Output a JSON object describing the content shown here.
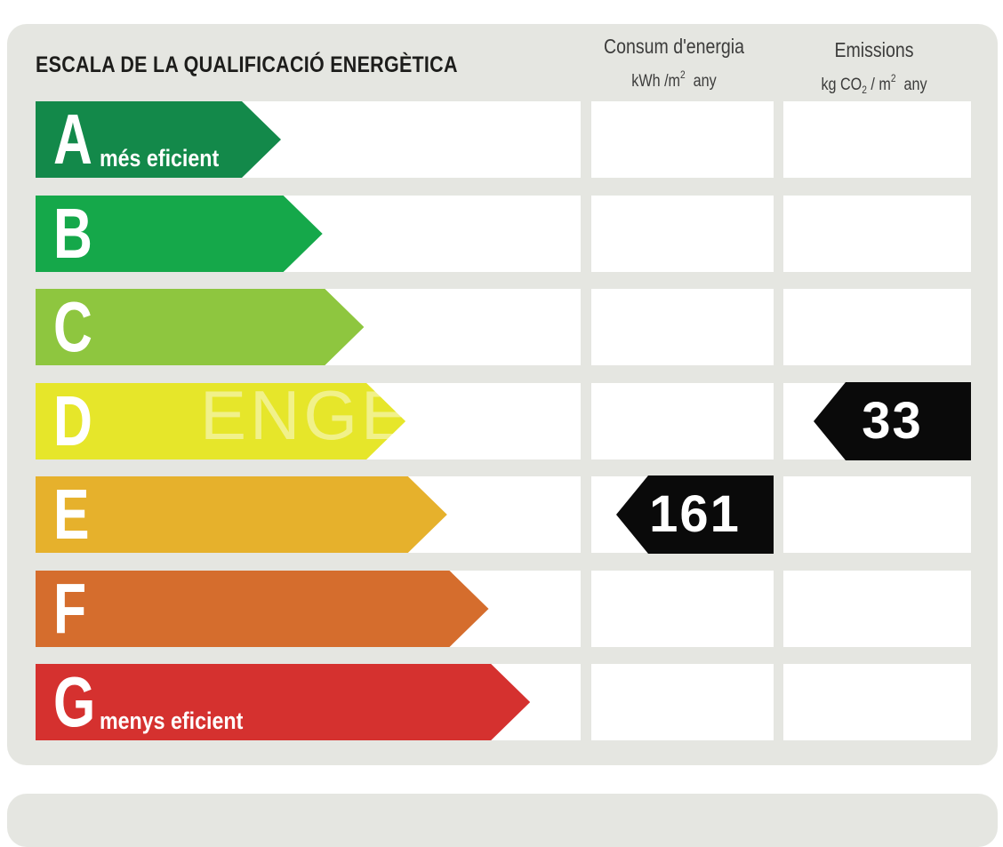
{
  "title": "ESCALA DE LA QUALIFICACIÓ ENERGÈTICA",
  "columns": {
    "energy": {
      "label": "Consum d'energia",
      "unit_a": "kWh /m",
      "unit_sup": "2",
      "unit_b": "any"
    },
    "emissions": {
      "label": "Emissions",
      "unit_a": "kg CO",
      "unit_sub": "2",
      "unit_mid": "/ m",
      "unit_sup": "2",
      "unit_b": "any"
    }
  },
  "ratings": [
    {
      "letter": "A",
      "desc": "més eficient",
      "color": "#13894a"
    },
    {
      "letter": "B",
      "desc": "",
      "color": "#15a84a"
    },
    {
      "letter": "C",
      "desc": "",
      "color": "#8ec63f"
    },
    {
      "letter": "D",
      "desc": "",
      "color": "#e6e62a"
    },
    {
      "letter": "E",
      "desc": "",
      "color": "#e6b12c"
    },
    {
      "letter": "F",
      "desc": "",
      "color": "#d56d2d"
    },
    {
      "letter": "G",
      "desc": "menys eficient",
      "color": "#d5312f"
    }
  ],
  "energy_consumption": {
    "value": "161",
    "rating": "E"
  },
  "emissions_value": {
    "value": "33",
    "rating": "D"
  },
  "watermark": "ENGE"
}
